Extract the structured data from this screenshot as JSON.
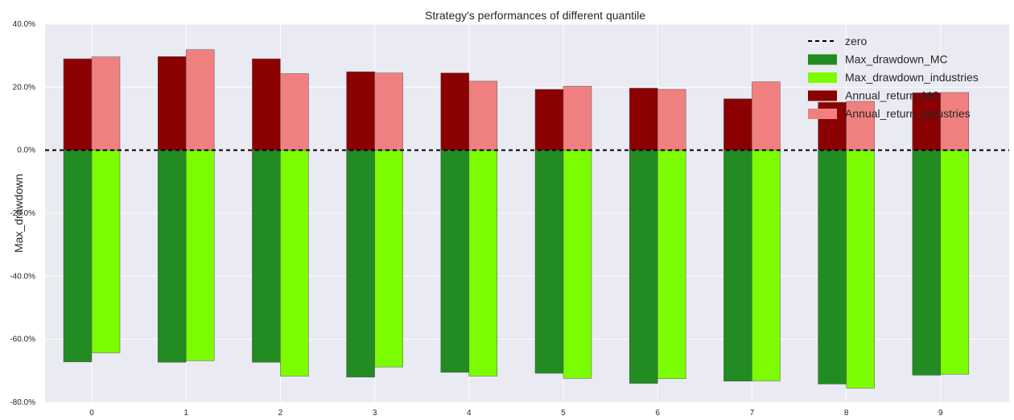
{
  "chart_data": {
    "type": "bar",
    "title": "Strategy's performances of different quantile",
    "xlabel": "",
    "ylabel": "Max_drawdown",
    "categories": [
      "0",
      "1",
      "2",
      "3",
      "4",
      "5",
      "6",
      "7",
      "8",
      "9"
    ],
    "ylim": [
      -0.8,
      0.4
    ],
    "yticks": [
      {
        "value": 0.4,
        "label": "40.0%"
      },
      {
        "value": 0.2,
        "label": "20.0%"
      },
      {
        "value": 0.0,
        "label": "0.0%"
      },
      {
        "value": -0.2,
        "label": "-20.0%"
      },
      {
        "value": -0.4,
        "label": "-40.0%"
      },
      {
        "value": -0.6,
        "label": "-60.0%"
      },
      {
        "value": -0.8,
        "label": "-80.0%"
      }
    ],
    "grid": true,
    "legend_position": "top-right",
    "reference_line": {
      "name": "zero",
      "value": 0.0,
      "style": "dashed",
      "color": "#000000"
    },
    "series": [
      {
        "name": "Max_drawdown_MC",
        "color": "#228B22",
        "values": [
          -0.672,
          -0.673,
          -0.673,
          -0.72,
          -0.705,
          -0.708,
          -0.74,
          -0.733,
          -0.742,
          -0.714
        ]
      },
      {
        "name": "Max_drawdown_industries",
        "color": "#7CFC00",
        "values": [
          -0.643,
          -0.668,
          -0.717,
          -0.688,
          -0.717,
          -0.724,
          -0.725,
          -0.732,
          -0.755,
          -0.711
        ]
      },
      {
        "name": "Annual_return_MC",
        "color": "#8B0000",
        "values": [
          0.29,
          0.297,
          0.29,
          0.249,
          0.245,
          0.193,
          0.197,
          0.163,
          0.152,
          0.182
        ]
      },
      {
        "name": "Annual_return_industries",
        "color": "#F08080",
        "values": [
          0.296,
          0.319,
          0.243,
          0.245,
          0.219,
          0.203,
          0.193,
          0.217,
          0.155,
          0.183
        ]
      }
    ]
  }
}
